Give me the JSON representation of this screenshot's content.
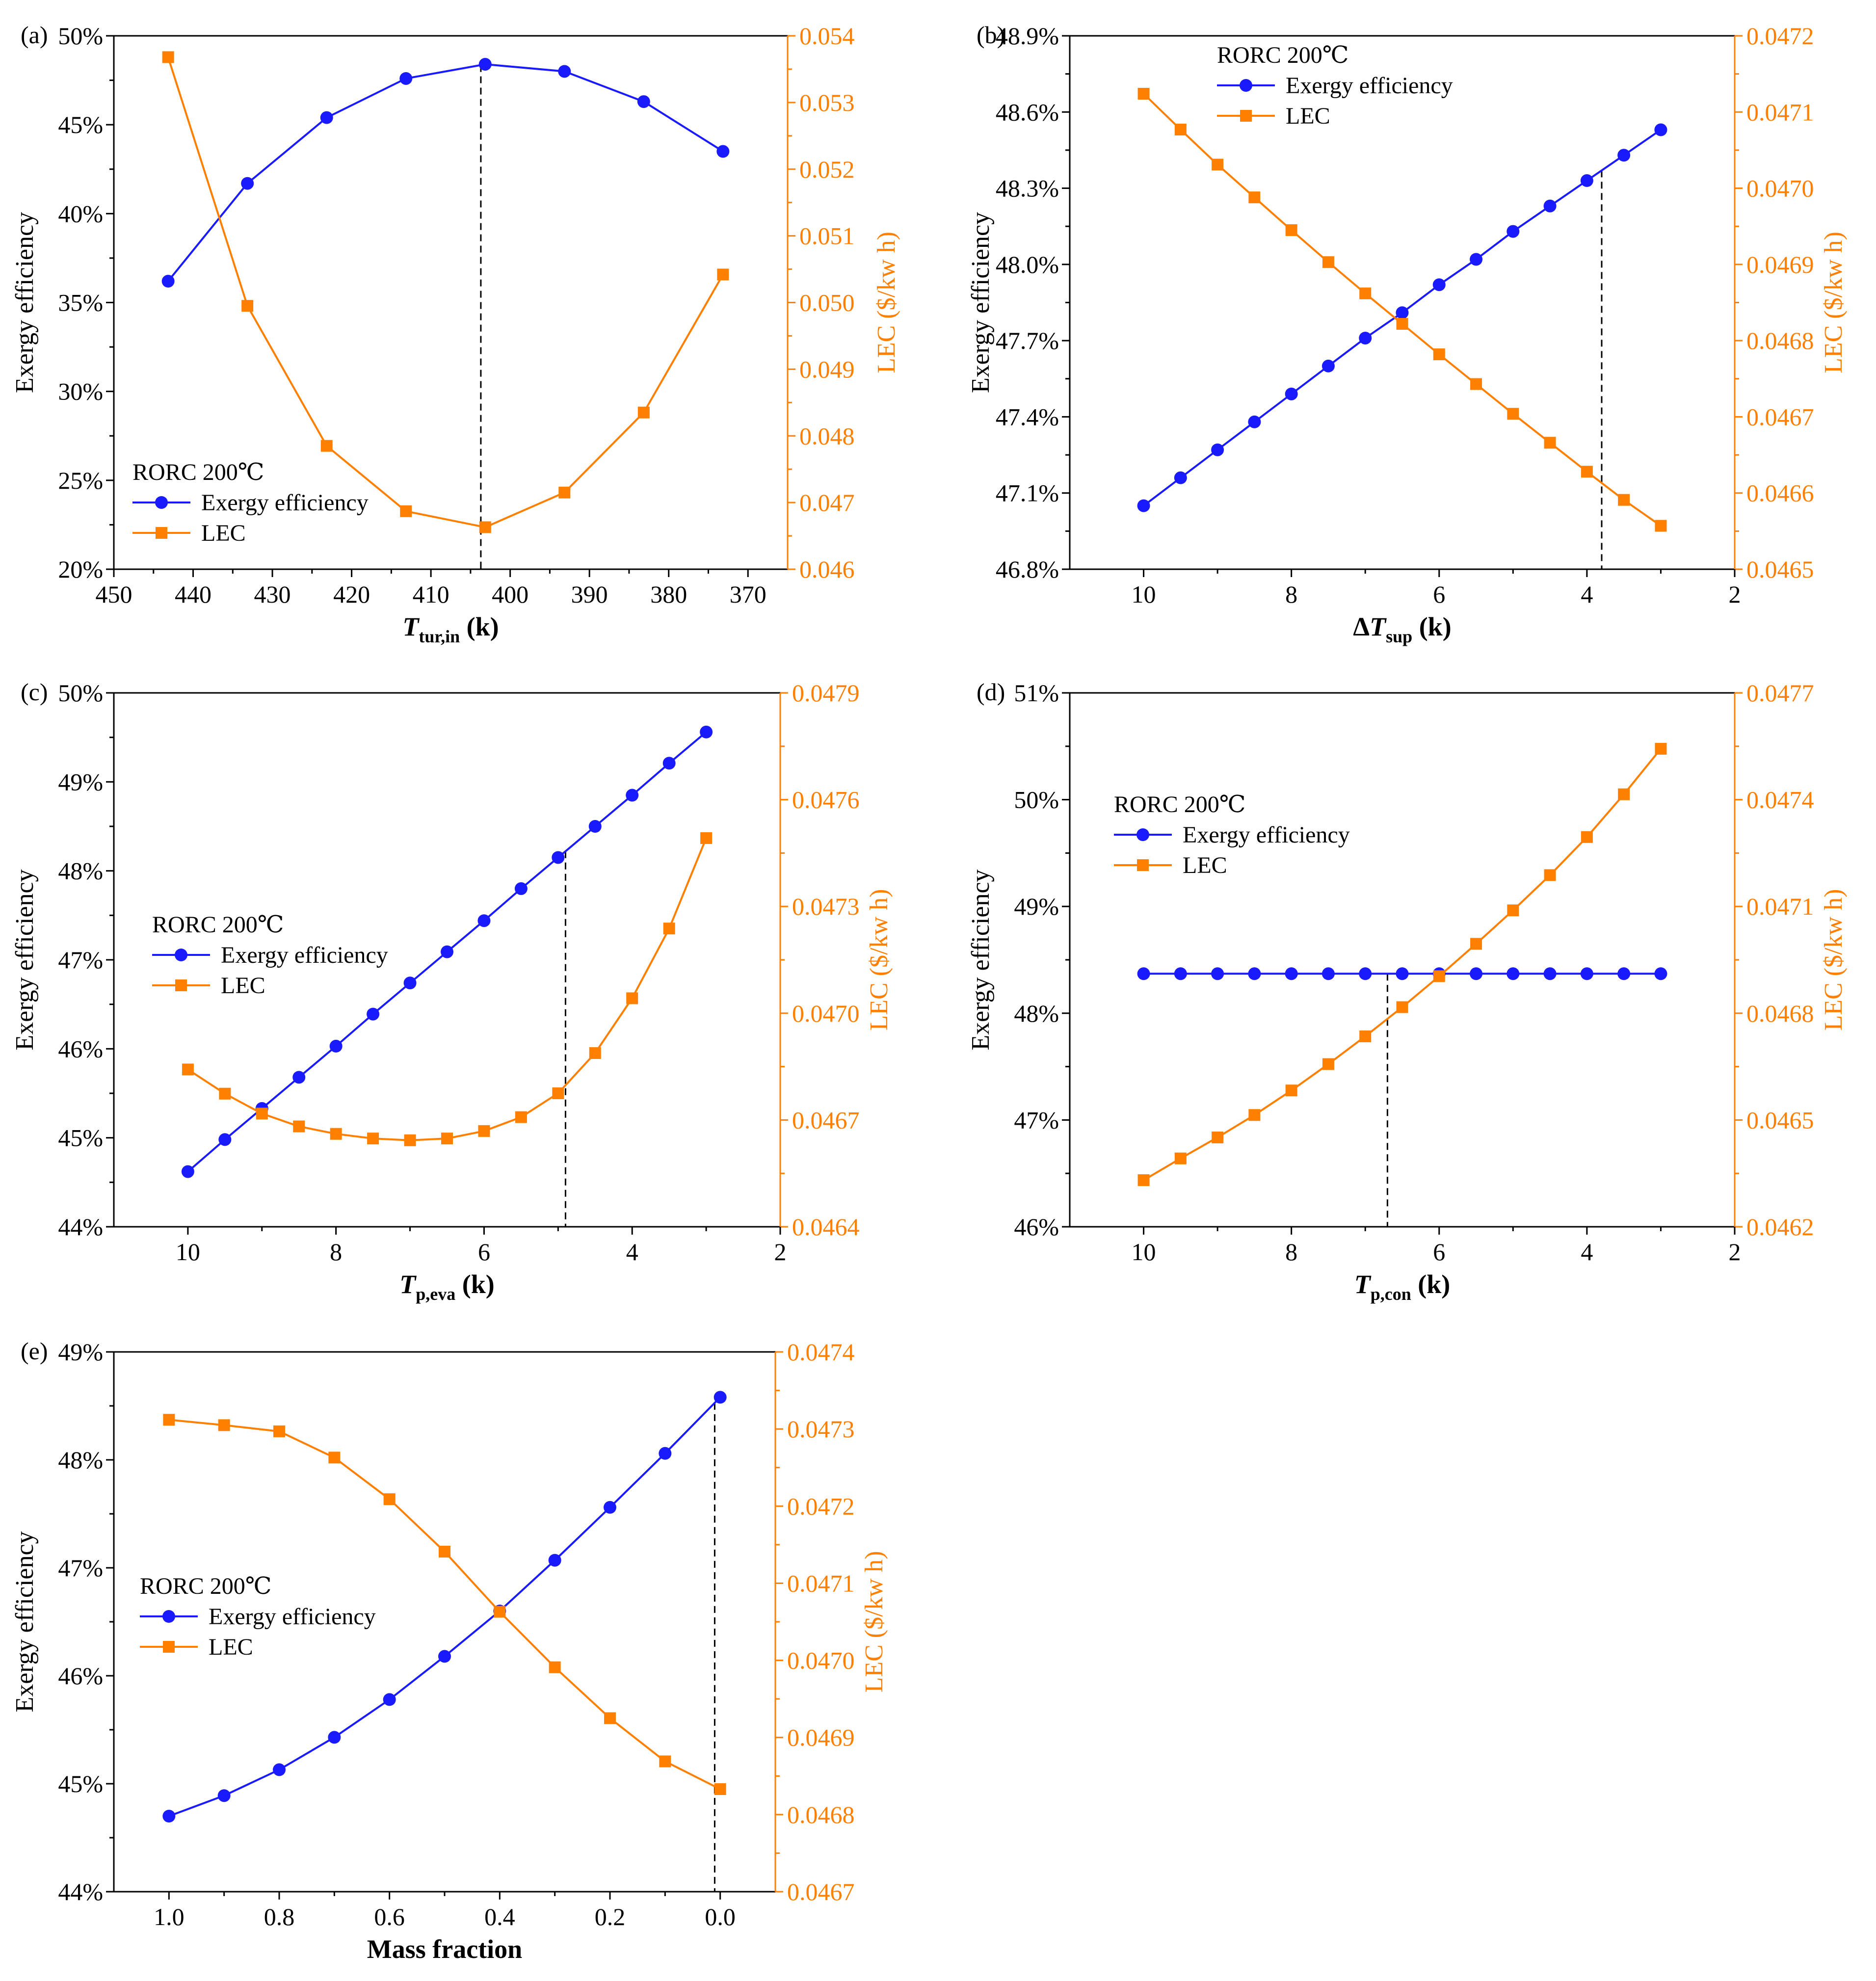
{
  "colors": {
    "exergy": "#1a1aff",
    "lec": "#ff8000",
    "axis": "#000000"
  },
  "chart_data": [
    {
      "type": "line",
      "panel_label": "(a)",
      "title": "",
      "xlabel": {
        "main": "T",
        "sub": "tur,in",
        "unit": " (k)"
      },
      "ylabel_left": "Exergy efficiency",
      "ylabel_right": "LEC ($/kw  h)",
      "x_reversed": true,
      "xlim": [
        450,
        365
      ],
      "x_ticks": [
        450,
        440,
        430,
        420,
        410,
        400,
        390,
        380,
        370
      ],
      "x_tick_labels": [
        "450",
        "440",
        "430",
        "420",
        "410",
        "400",
        "390",
        "380",
        "370"
      ],
      "ylim_left": [
        20,
        50
      ],
      "y_left_ticks": [
        20,
        25,
        30,
        35,
        40,
        45,
        50
      ],
      "y_left_tick_labels": [
        "20%",
        "25%",
        "30%",
        "35%",
        "40%",
        "45%",
        "50%"
      ],
      "ylim_right": [
        0.046,
        0.054
      ],
      "y_right_ticks": [
        0.046,
        0.047,
        0.048,
        0.049,
        0.05,
        0.051,
        0.052,
        0.053,
        0.054
      ],
      "y_right_tick_labels": [
        "0.046",
        "0.047",
        "0.048",
        "0.049",
        "0.050",
        "0.051",
        "0.052",
        "0.053",
        "0.054"
      ],
      "legend": {
        "title": "RORC 200℃",
        "position": "bottom-left",
        "entries": [
          "Exergy efficiency",
          "LEC"
        ]
      },
      "dashed_line_x": 403.7,
      "series": [
        {
          "name": "Exergy efficiency",
          "axis": "left",
          "marker": "circle",
          "x": [
            443.15,
            433.15,
            423.15,
            413.15,
            403.15,
            393.15,
            383.15,
            373.15
          ],
          "values": [
            36.2,
            41.7,
            45.4,
            47.6,
            48.4,
            48.0,
            46.3,
            43.5
          ]
        },
        {
          "name": "LEC",
          "axis": "right",
          "marker": "square",
          "x": [
            443.15,
            433.15,
            423.15,
            413.15,
            403.15,
            393.15,
            383.15,
            373.15
          ],
          "values": [
            0.05368,
            0.04995,
            0.04785,
            0.04687,
            0.04663,
            0.04715,
            0.04835,
            0.05042
          ]
        }
      ]
    },
    {
      "type": "line",
      "panel_label": "(b)",
      "title": "",
      "xlabel": {
        "main": "ΔT",
        "sub": "sup",
        "unit": " (k)"
      },
      "ylabel_left": "Exergy efficiency",
      "ylabel_right": "LEC ($/kw  h)",
      "x_reversed": true,
      "xlim": [
        11,
        2
      ],
      "x_ticks": [
        10,
        8,
        6,
        4,
        2
      ],
      "x_tick_labels": [
        "10",
        "8",
        "6",
        "4",
        "2"
      ],
      "ylim_left": [
        46.8,
        48.9
      ],
      "y_left_ticks": [
        46.8,
        47.1,
        47.4,
        47.7,
        48.0,
        48.3,
        48.6,
        48.9
      ],
      "y_left_tick_labels": [
        "46.8%",
        "47.1%",
        "47.4%",
        "47.7%",
        "48.0%",
        "48.3%",
        "48.6%",
        "48.9%"
      ],
      "ylim_right": [
        0.0465,
        0.0472
      ],
      "y_right_ticks": [
        0.0465,
        0.0466,
        0.0467,
        0.0468,
        0.0469,
        0.047,
        0.0471,
        0.0472
      ],
      "y_right_tick_labels": [
        "0.0465",
        "0.0466",
        "0.0467",
        "0.0468",
        "0.0469",
        "0.0470",
        "0.0471",
        "0.0472"
      ],
      "legend": {
        "title": "RORC 200℃",
        "position": "top-left",
        "entries": [
          "Exergy efficiency",
          "LEC"
        ]
      },
      "dashed_line_x": 3.8,
      "series": [
        {
          "name": "Exergy efficiency",
          "axis": "left",
          "marker": "circle",
          "x": [
            10,
            9.5,
            9,
            8.5,
            8,
            7.5,
            7,
            6.5,
            6,
            5.5,
            5,
            4.5,
            4,
            3.5,
            3
          ],
          "values": [
            47.05,
            47.16,
            47.27,
            47.38,
            47.49,
            47.6,
            47.71,
            47.81,
            47.92,
            48.02,
            48.13,
            48.23,
            48.33,
            48.43,
            48.53
          ]
        },
        {
          "name": "LEC",
          "axis": "right",
          "marker": "square",
          "x": [
            10,
            9.5,
            9,
            8.5,
            8,
            7.5,
            7,
            6.5,
            6,
            5.5,
            5,
            4.5,
            4,
            3.5,
            3
          ],
          "values": [
            0.047124,
            0.047077,
            0.047031,
            0.046988,
            0.046945,
            0.046903,
            0.046862,
            0.046822,
            0.046782,
            0.046743,
            0.046704,
            0.046666,
            0.046628,
            0.046591,
            0.046557
          ]
        }
      ]
    },
    {
      "type": "line",
      "panel_label": "(c)",
      "title": "",
      "xlabel": {
        "main": "T",
        "sub": "p,eva",
        "unit": " (k)"
      },
      "ylabel_left": "Exergy efficiency",
      "ylabel_right": "LEC ($/kw  h)",
      "x_reversed": true,
      "xlim": [
        11,
        2
      ],
      "x_ticks": [
        10,
        8,
        6,
        4,
        2
      ],
      "x_tick_labels": [
        "10",
        "8",
        "6",
        "4",
        "2"
      ],
      "ylim_left": [
        44,
        50
      ],
      "y_left_ticks": [
        44,
        45,
        46,
        47,
        48,
        49,
        50
      ],
      "y_left_tick_labels": [
        "44%",
        "45%",
        "46%",
        "47%",
        "48%",
        "49%",
        "50%"
      ],
      "ylim_right": [
        0.0464,
        0.0479
      ],
      "y_right_ticks": [
        0.0464,
        0.0467,
        0.047,
        0.0473,
        0.0476,
        0.0479
      ],
      "y_right_tick_labels": [
        "0.0464",
        "0.0467",
        "0.0470",
        "0.0473",
        "0.0476",
        "0.0479"
      ],
      "legend": {
        "title": "RORC 200℃",
        "position": "middle-left",
        "entries": [
          "Exergy efficiency",
          "LEC"
        ]
      },
      "dashed_line_x": 4.9,
      "series": [
        {
          "name": "Exergy efficiency",
          "axis": "left",
          "marker": "circle",
          "x": [
            10,
            9.5,
            9,
            8.5,
            8,
            7.5,
            7,
            6.5,
            6,
            5.5,
            5,
            4.5,
            4,
            3.5,
            3
          ],
          "values": [
            44.62,
            44.98,
            45.33,
            45.68,
            46.03,
            46.39,
            46.74,
            47.09,
            47.44,
            47.8,
            48.15,
            48.5,
            48.85,
            49.21,
            49.56
          ]
        },
        {
          "name": "LEC",
          "axis": "right",
          "marker": "square",
          "x": [
            10,
            9.5,
            9,
            8.5,
            8,
            7.5,
            7,
            6.5,
            6,
            5.5,
            5,
            4.5,
            4,
            3.5,
            3
          ],
          "values": [
            0.046842,
            0.046774,
            0.046718,
            0.046682,
            0.046661,
            0.046648,
            0.046643,
            0.046648,
            0.046669,
            0.046708,
            0.046775,
            0.046888,
            0.047042,
            0.047238,
            0.047492
          ]
        }
      ]
    },
    {
      "type": "line",
      "panel_label": "(d)",
      "title": "",
      "xlabel": {
        "main": "T",
        "sub": "p,con",
        "unit": " (k)"
      },
      "ylabel_left": "Exergy efficiency",
      "ylabel_right": "LEC ($/kw  h)",
      "x_reversed": true,
      "xlim": [
        11,
        2
      ],
      "x_ticks": [
        10,
        8,
        6,
        4,
        2
      ],
      "x_tick_labels": [
        "10",
        "8",
        "6",
        "4",
        "2"
      ],
      "ylim_left": [
        46,
        51
      ],
      "y_left_ticks": [
        46,
        47,
        48,
        49,
        50,
        51
      ],
      "y_left_tick_labels": [
        "46%",
        "47%",
        "48%",
        "49%",
        "50%",
        "51%"
      ],
      "ylim_right": [
        0.0462,
        0.0477
      ],
      "y_right_ticks": [
        0.0462,
        0.0465,
        0.0468,
        0.0471,
        0.0474,
        0.0477
      ],
      "y_right_tick_labels": [
        "0.0462",
        "0.0465",
        "0.0468",
        "0.0471",
        "0.0474",
        "0.0477"
      ],
      "legend": {
        "title": "RORC 200℃",
        "position": "top-left",
        "entries": [
          "Exergy efficiency",
          "LEC"
        ]
      },
      "dashed_line_x": 6.7,
      "series": [
        {
          "name": "Exergy efficiency",
          "axis": "left",
          "marker": "circle",
          "x": [
            10,
            9.5,
            9,
            8.5,
            8,
            7.5,
            7,
            6.5,
            6,
            5.5,
            5,
            4.5,
            4,
            3.5,
            3
          ],
          "values": [
            48.37,
            48.37,
            48.37,
            48.37,
            48.37,
            48.37,
            48.37,
            48.37,
            48.37,
            48.37,
            48.37,
            48.37,
            48.37,
            48.37,
            48.37
          ]
        },
        {
          "name": "LEC",
          "axis": "right",
          "marker": "square",
          "x": [
            10,
            9.5,
            9,
            8.5,
            8,
            7.5,
            7,
            6.5,
            6,
            5.5,
            5,
            4.5,
            4,
            3.5,
            3
          ],
          "values": [
            0.046331,
            0.046392,
            0.046451,
            0.046514,
            0.046583,
            0.046657,
            0.046735,
            0.046817,
            0.046904,
            0.046995,
            0.047089,
            0.047188,
            0.047295,
            0.047415,
            0.047543
          ]
        }
      ]
    },
    {
      "type": "line",
      "panel_label": "(e)",
      "title": "",
      "xlabel": {
        "main": "Mass fraction",
        "sub": "",
        "unit": ""
      },
      "ylabel_left": "Exergy efficiency",
      "ylabel_right": "LEC ($/kw  h)",
      "x_reversed": true,
      "xlim": [
        1.1,
        -0.1
      ],
      "x_ticks": [
        1.0,
        0.8,
        0.6,
        0.4,
        0.2,
        0.0
      ],
      "x_tick_labels": [
        "1.0",
        "0.8",
        "0.6",
        "0.4",
        "0.2",
        "0.0"
      ],
      "ylim_left": [
        44,
        49
      ],
      "y_left_ticks": [
        44,
        45,
        46,
        47,
        48,
        49
      ],
      "y_left_tick_labels": [
        "44%",
        "45%",
        "46%",
        "47%",
        "48%",
        "49%"
      ],
      "ylim_right": [
        0.0467,
        0.0474
      ],
      "y_right_ticks": [
        0.0467,
        0.0468,
        0.0469,
        0.047,
        0.0471,
        0.0472,
        0.0473,
        0.0474
      ],
      "y_right_tick_labels": [
        "0.0467",
        "0.0468",
        "0.0469",
        "0.0470",
        "0.0471",
        "0.0472",
        "0.0473",
        "0.0474"
      ],
      "legend": {
        "title": "RORC 200℃",
        "position": "middle-left",
        "entries": [
          "Exergy efficiency",
          "LEC"
        ]
      },
      "dashed_line_x": 0.01,
      "series": [
        {
          "name": "Exergy efficiency",
          "axis": "left",
          "marker": "circle",
          "x": [
            1.0,
            0.9,
            0.8,
            0.7,
            0.6,
            0.5,
            0.4,
            0.3,
            0.2,
            0.1,
            0.0
          ],
          "values": [
            44.7,
            44.89,
            45.13,
            45.43,
            45.78,
            46.18,
            46.6,
            47.07,
            47.56,
            48.06,
            48.58
          ]
        },
        {
          "name": "LEC",
          "axis": "right",
          "marker": "square",
          "x": [
            1.0,
            0.9,
            0.8,
            0.7,
            0.6,
            0.5,
            0.4,
            0.3,
            0.2,
            0.1,
            0.0
          ],
          "values": [
            0.047312,
            0.047305,
            0.047297,
            0.047263,
            0.047209,
            0.047141,
            0.047063,
            0.046991,
            0.046925,
            0.046869,
            0.046833
          ]
        }
      ]
    }
  ]
}
